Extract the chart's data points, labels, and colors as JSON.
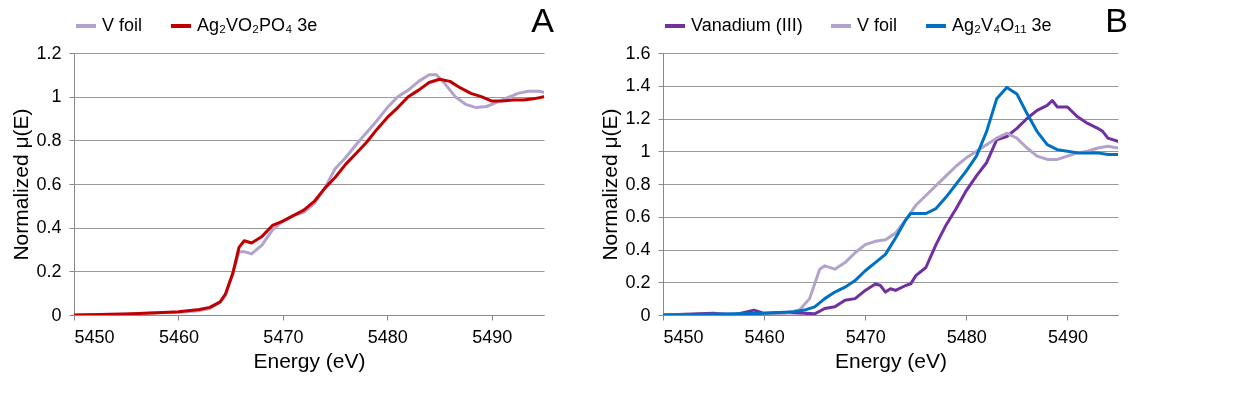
{
  "chart_data": [
    {
      "type": "line",
      "xlabel": "Energy (eV)",
      "ylabel": "Normalized μ(E)",
      "annotations": [
        "A"
      ],
      "xlim": [
        5450,
        5495
      ],
      "xticks": [
        5450,
        5460,
        5470,
        5480,
        5490
      ],
      "ylim": [
        0,
        1.2
      ],
      "yticks": [
        0,
        0.2,
        0.4,
        0.6,
        0.8,
        1,
        1.2
      ],
      "grid": "y",
      "legend": "top",
      "line_style": "solid",
      "series": [
        {
          "name": "V foil",
          "color": "#b3a2cc",
          "x": [
            5450,
            5455,
            5458,
            5460,
            5462,
            5463,
            5464,
            5464.5,
            5465.2,
            5465.8,
            5466.3,
            5467,
            5468,
            5469,
            5470,
            5471,
            5472,
            5473,
            5474,
            5475,
            5476,
            5477,
            5478,
            5479,
            5480,
            5481,
            5482,
            5483,
            5484,
            5484.7,
            5485.5,
            5486.5,
            5487.5,
            5488.5,
            5489.5,
            5490.5,
            5491.5,
            5492.5,
            5493.5,
            5494.5,
            5495
          ],
          "values": [
            0,
            0.005,
            0.01,
            0.012,
            0.02,
            0.03,
            0.06,
            0.09,
            0.19,
            0.29,
            0.29,
            0.28,
            0.32,
            0.39,
            0.43,
            0.455,
            0.47,
            0.51,
            0.58,
            0.67,
            0.72,
            0.78,
            0.835,
            0.89,
            0.95,
            1.0,
            1.03,
            1.07,
            1.1,
            1.1,
            1.06,
            1.0,
            0.965,
            0.95,
            0.955,
            0.975,
            0.995,
            1.015,
            1.025,
            1.025,
            1.02
          ]
        },
        {
          "name": "Ag₂VO₂PO₄ 3e",
          "color": "#c00000",
          "x": [
            5450,
            5455,
            5458,
            5460,
            5462,
            5463,
            5464,
            5464.5,
            5465.2,
            5465.8,
            5466.3,
            5467,
            5468,
            5469,
            5470,
            5471,
            5472,
            5473,
            5474,
            5475,
            5476,
            5477,
            5478,
            5479,
            5480,
            5481,
            5482,
            5483,
            5484,
            5485,
            5486,
            5487,
            5488,
            5489,
            5490,
            5491,
            5492,
            5493,
            5494,
            5495
          ],
          "values": [
            0,
            0.005,
            0.01,
            0.015,
            0.025,
            0.035,
            0.06,
            0.096,
            0.19,
            0.31,
            0.34,
            0.33,
            0.36,
            0.41,
            0.43,
            0.455,
            0.48,
            0.52,
            0.58,
            0.63,
            0.69,
            0.74,
            0.79,
            0.85,
            0.905,
            0.95,
            1.0,
            1.03,
            1.065,
            1.08,
            1.07,
            1.04,
            1.015,
            1.0,
            0.98,
            0.98,
            0.985,
            0.985,
            0.99,
            1.0
          ]
        }
      ]
    },
    {
      "type": "line",
      "xlabel": "Energy (eV)",
      "ylabel": "Normalized μ(E)",
      "annotations": [
        "B"
      ],
      "xlim": [
        5450,
        5495
      ],
      "xticks": [
        5450,
        5460,
        5470,
        5480,
        5490
      ],
      "ylim": [
        0,
        1.6
      ],
      "yticks": [
        0,
        0.2,
        0.4,
        0.6,
        0.8,
        1,
        1.2,
        1.4,
        1.6
      ],
      "grid": "y",
      "legend": "top",
      "line_style": "solid",
      "series": [
        {
          "name": "Vanadium (III)",
          "color": "#7030a0",
          "x": [
            5450,
            5455,
            5457,
            5459,
            5460,
            5462,
            5464,
            5465,
            5466,
            5467,
            5468,
            5469,
            5470,
            5471,
            5471.5,
            5472,
            5472.5,
            5473,
            5474,
            5474.5,
            5475,
            5476,
            5477,
            5478,
            5479,
            5480,
            5481,
            5482,
            5483,
            5484,
            5485,
            5486,
            5487,
            5488,
            5488.5,
            5489,
            5490,
            5491,
            5492,
            5493,
            5493.5,
            5494,
            5495
          ],
          "values": [
            0,
            0.01,
            0,
            0.03,
            0.01,
            0.015,
            0.01,
            0.007,
            0.04,
            0.05,
            0.09,
            0.1,
            0.15,
            0.19,
            0.18,
            0.14,
            0.16,
            0.15,
            0.18,
            0.19,
            0.24,
            0.29,
            0.43,
            0.55,
            0.65,
            0.76,
            0.85,
            0.93,
            1.07,
            1.09,
            1.14,
            1.2,
            1.25,
            1.28,
            1.31,
            1.27,
            1.27,
            1.21,
            1.17,
            1.14,
            1.12,
            1.08,
            1.06
          ]
        },
        {
          "name": "V foil",
          "color": "#b3a2cc",
          "x": [
            5450,
            5462,
            5463.5,
            5464.5,
            5465.5,
            5466,
            5467,
            5468,
            5469,
            5470,
            5471,
            5472,
            5473,
            5474,
            5475,
            5476,
            5477,
            5478,
            5479,
            5480,
            5481,
            5482,
            5483,
            5484,
            5485,
            5486,
            5487,
            5488,
            5489,
            5490,
            5491,
            5492,
            5493,
            5494,
            5495
          ],
          "values": [
            0,
            0.01,
            0.03,
            0.1,
            0.28,
            0.3,
            0.28,
            0.32,
            0.38,
            0.43,
            0.45,
            0.46,
            0.5,
            0.58,
            0.67,
            0.73,
            0.79,
            0.85,
            0.91,
            0.96,
            1.0,
            1.04,
            1.08,
            1.11,
            1.08,
            1.02,
            0.97,
            0.95,
            0.95,
            0.97,
            0.99,
            1.0,
            1.02,
            1.03,
            1.02
          ]
        },
        {
          "name": "Ag₂V₄O₁₁ 3e",
          "color": "#0070c0",
          "x": [
            5450,
            5460,
            5463,
            5464,
            5465,
            5466,
            5467,
            5468,
            5469,
            5470,
            5471,
            5472,
            5473,
            5474,
            5474.5,
            5475.5,
            5476,
            5477,
            5478,
            5479,
            5480,
            5481,
            5482,
            5483,
            5484,
            5485,
            5486,
            5487,
            5488,
            5489,
            5490,
            5491,
            5492,
            5493,
            5494,
            5495
          ],
          "values": [
            0,
            0.01,
            0.02,
            0.03,
            0.05,
            0.1,
            0.14,
            0.17,
            0.21,
            0.27,
            0.32,
            0.37,
            0.47,
            0.58,
            0.62,
            0.62,
            0.62,
            0.65,
            0.72,
            0.8,
            0.88,
            0.97,
            1.12,
            1.32,
            1.39,
            1.35,
            1.23,
            1.12,
            1.04,
            1.01,
            1.0,
            0.99,
            0.99,
            0.99,
            0.98,
            0.98
          ]
        }
      ]
    }
  ]
}
